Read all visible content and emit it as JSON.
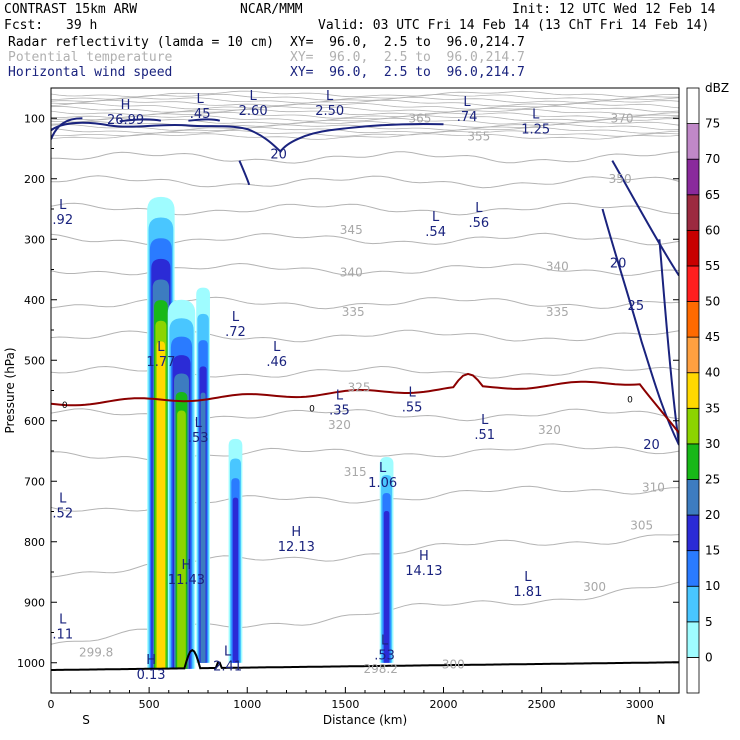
{
  "header": {
    "model": "CONTRAST 15km ARW",
    "org": "NCAR/MMM",
    "init": "Init: 12 UTC Wed 12 Feb 14",
    "fcst_label": "Fcst:",
    "fcst_value": "39 h",
    "valid": "Valid: 03 UTC Fri 14 Feb 14 (13 ChT Fri 14 Feb 14)",
    "fields": [
      {
        "name": "Radar reflectivity (lamda = 10 cm)",
        "xy": "XY=  96.0,  2.5 to  96.0,214.7",
        "color": "#000000"
      },
      {
        "name": "Potential temperature",
        "xy": "XY=  96.0,  2.5 to  96.0,214.7",
        "color": "#b0b0b0"
      },
      {
        "name": "Horizontal wind speed",
        "xy": "XY=  96.0,  2.5 to  96.0,214.7",
        "color": "#1a237e"
      }
    ]
  },
  "chart_data": {
    "type": "heatmap",
    "xlabel": "Distance (km)",
    "ylabel": "Pressure (hPa)",
    "xlim": [
      0,
      3200
    ],
    "ylim": [
      1050,
      50
    ],
    "x_ticks": [
      0,
      500,
      1000,
      1500,
      2000,
      2500,
      3000
    ],
    "y_ticks": [
      100,
      200,
      300,
      400,
      500,
      600,
      700,
      800,
      900,
      1000
    ],
    "x_end_labels": {
      "left": "S",
      "right": "N"
    },
    "colorbar": {
      "unit": "dBZ",
      "levels": [
        0,
        5,
        10,
        15,
        20,
        25,
        30,
        35,
        40,
        45,
        50,
        55,
        60,
        65,
        70,
        75
      ],
      "colors": [
        "#ffffff",
        "#9ffcff",
        "#49c6ff",
        "#2a7bff",
        "#2b2bd6",
        "#3d7cc0",
        "#18b818",
        "#8cd400",
        "#ffd800",
        "#ffa040",
        "#ff6a00",
        "#ff1f1f",
        "#c80000",
        "#9c2a40",
        "#8a2a9c",
        "#c088c8",
        "#ffffff"
      ]
    },
    "reflectivity_cells": [
      {
        "x_center": 560,
        "top_hPa": 230,
        "bottom_hPa": 1010,
        "max_dBZ": 40
      },
      {
        "x_center": 665,
        "top_hPa": 400,
        "bottom_hPa": 1010,
        "max_dBZ": 35
      },
      {
        "x_center": 775,
        "top_hPa": 380,
        "bottom_hPa": 1000,
        "max_dBZ": 25
      },
      {
        "x_center": 940,
        "top_hPa": 630,
        "bottom_hPa": 1000,
        "max_dBZ": 20
      },
      {
        "x_center": 1710,
        "top_hPa": 660,
        "bottom_hPa": 1000,
        "max_dBZ": 20
      }
    ],
    "theta_labels": [
      {
        "text": "365",
        "x": 1880,
        "p": 100
      },
      {
        "text": "355",
        "x": 2180,
        "p": 130
      },
      {
        "text": "370",
        "x": 2910,
        "p": 100
      },
      {
        "text": "350",
        "x": 2900,
        "p": 200
      },
      {
        "text": "345",
        "x": 1530,
        "p": 285
      },
      {
        "text": "340",
        "x": 1530,
        "p": 355
      },
      {
        "text": "340",
        "x": 2580,
        "p": 345
      },
      {
        "text": "335",
        "x": 1540,
        "p": 420
      },
      {
        "text": "335",
        "x": 2580,
        "p": 420
      },
      {
        "text": "325",
        "x": 1570,
        "p": 545
      },
      {
        "text": "320",
        "x": 1470,
        "p": 607
      },
      {
        "text": "320",
        "x": 2540,
        "p": 615
      },
      {
        "text": "315",
        "x": 1550,
        "p": 685
      },
      {
        "text": "310",
        "x": 3070,
        "p": 710
      },
      {
        "text": "305",
        "x": 3010,
        "p": 773
      },
      {
        "text": "300",
        "x": 2770,
        "p": 875
      },
      {
        "text": "300",
        "x": 2050,
        "p": 1003
      },
      {
        "text": "299.8",
        "x": 230,
        "p": 983
      },
      {
        "text": "298.2",
        "x": 1680,
        "p": 1010
      }
    ],
    "wind_contour_labels": [
      {
        "text": "20",
        "x": 1160,
        "p": 160
      },
      {
        "text": "20",
        "x": 2890,
        "p": 340
      },
      {
        "text": "25",
        "x": 2980,
        "p": 410
      },
      {
        "text": "20",
        "x": 3060,
        "p": 640
      }
    ],
    "freezing_level_label": "0",
    "extrema": [
      {
        "kind": "H",
        "value": "26.99",
        "x": 380,
        "p": 95
      },
      {
        "kind": "L",
        "value": ".45",
        "x": 760,
        "p": 85
      },
      {
        "kind": "L",
        "value": "2.60",
        "x": 1030,
        "p": 80
      },
      {
        "kind": "L",
        "value": "2.50",
        "x": 1420,
        "p": 80
      },
      {
        "kind": "L",
        "value": ".74",
        "x": 2120,
        "p": 90
      },
      {
        "kind": "L",
        "value": "1.25",
        "x": 2470,
        "p": 110
      },
      {
        "kind": "L",
        "value": ".92",
        "x": 60,
        "p": 260
      },
      {
        "kind": "L",
        "value": ".54",
        "x": 1960,
        "p": 280
      },
      {
        "kind": "L",
        "value": ".56",
        "x": 2180,
        "p": 265
      },
      {
        "kind": "L",
        "value": ".72",
        "x": 940,
        "p": 445
      },
      {
        "kind": "L",
        "value": ".46",
        "x": 1150,
        "p": 495
      },
      {
        "kind": "L",
        "value": "1.77",
        "x": 560,
        "p": 495
      },
      {
        "kind": "L",
        "value": ".35",
        "x": 1470,
        "p": 575
      },
      {
        "kind": "L",
        "value": ".55",
        "x": 1840,
        "p": 570
      },
      {
        "kind": "L",
        "value": ".53",
        "x": 750,
        "p": 620
      },
      {
        "kind": "L",
        "value": ".51",
        "x": 2210,
        "p": 615
      },
      {
        "kind": "L",
        "value": "1.06",
        "x": 1690,
        "p": 695
      },
      {
        "kind": "L",
        "value": ".52",
        "x": 60,
        "p": 745
      },
      {
        "kind": "H",
        "value": "12.13",
        "x": 1250,
        "p": 800
      },
      {
        "kind": "H",
        "value": "14.13",
        "x": 1900,
        "p": 840
      },
      {
        "kind": "H",
        "value": "11.43",
        "x": 690,
        "p": 855
      },
      {
        "kind": "L",
        "value": "1.81",
        "x": 2430,
        "p": 875
      },
      {
        "kind": "L",
        "value": ".11",
        "x": 60,
        "p": 945
      },
      {
        "kind": "L",
        "value": ".53",
        "x": 1700,
        "p": 980
      },
      {
        "kind": "L",
        "value": "2.41",
        "x": 900,
        "p": 998
      },
      {
        "kind": "H",
        "value": "0.13",
        "x": 510,
        "p": 1012
      }
    ]
  }
}
